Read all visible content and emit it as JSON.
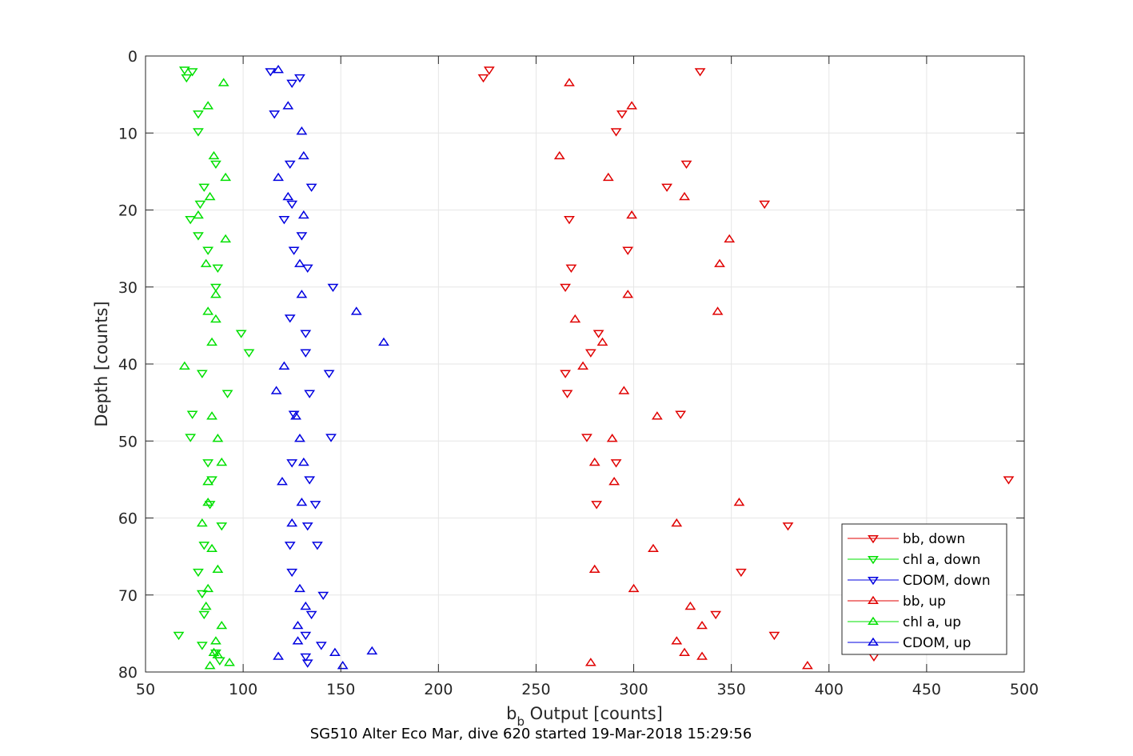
{
  "chart_data": {
    "type": "scatter",
    "title": "",
    "caption": "SG510 Alter Eco Mar, dive 620 started 19-Mar-2018 15:29:56",
    "xlabel_main": "b",
    "xlabel_sub": "b",
    "xlabel_rest": " Output [counts]",
    "ylabel": "Depth [counts]",
    "xlim": [
      50,
      500
    ],
    "ylim": [
      0,
      80
    ],
    "y_reversed": true,
    "grid": true,
    "legend_position": "bottom-right",
    "x_ticks": [
      "50",
      "100",
      "150",
      "200",
      "250",
      "300",
      "350",
      "400",
      "450",
      "500"
    ],
    "y_ticks": [
      "0",
      "10",
      "20",
      "30",
      "40",
      "50",
      "60",
      "70",
      "80"
    ],
    "series": [
      {
        "name": "bb, down",
        "color": "#e00000",
        "marker": "triangle-down",
        "points": [
          [
            226,
            1.8
          ],
          [
            223,
            2.8
          ],
          [
            334,
            2
          ],
          [
            294,
            7.5
          ],
          [
            291,
            9.8
          ],
          [
            327,
            14
          ],
          [
            317,
            17
          ],
          [
            367,
            19.2
          ],
          [
            267,
            21.2
          ],
          [
            297,
            25.2
          ],
          [
            268,
            27.5
          ],
          [
            265,
            30
          ],
          [
            282,
            36
          ],
          [
            278,
            38.5
          ],
          [
            265,
            41.2
          ],
          [
            266,
            43.8
          ],
          [
            324,
            46.5
          ],
          [
            276,
            49.5
          ],
          [
            291,
            52.8
          ],
          [
            492,
            55
          ],
          [
            281,
            58.2
          ],
          [
            379,
            61
          ],
          [
            355,
            67
          ],
          [
            342,
            72.5
          ],
          [
            372,
            75.2
          ],
          [
            423,
            78
          ]
        ]
      },
      {
        "name": "chl a, down",
        "color": "#00e000",
        "marker": "triangle-down",
        "points": [
          [
            70,
            1.8
          ],
          [
            74,
            2
          ],
          [
            71,
            2.8
          ],
          [
            77,
            7.5
          ],
          [
            77,
            9.8
          ],
          [
            86,
            14
          ],
          [
            80,
            17
          ],
          [
            78,
            19.2
          ],
          [
            73,
            21.2
          ],
          [
            77,
            23.3
          ],
          [
            82,
            25.2
          ],
          [
            87,
            27.5
          ],
          [
            86,
            30
          ],
          [
            99,
            36
          ],
          [
            103,
            38.5
          ],
          [
            79,
            41.2
          ],
          [
            92,
            43.8
          ],
          [
            74,
            46.5
          ],
          [
            73,
            49.5
          ],
          [
            82,
            52.8
          ],
          [
            84,
            55
          ],
          [
            83,
            58.2
          ],
          [
            89,
            61
          ],
          [
            80,
            63.5
          ],
          [
            77,
            67
          ],
          [
            79,
            69.8
          ],
          [
            80,
            72.5
          ],
          [
            67,
            75.2
          ],
          [
            79,
            76.5
          ],
          [
            86,
            77.5
          ],
          [
            88,
            78.5
          ]
        ]
      },
      {
        "name": "CDOM, down",
        "color": "#0000e0",
        "marker": "triangle-down",
        "points": [
          [
            114,
            2
          ],
          [
            129,
            2.8
          ],
          [
            125,
            3.5
          ],
          [
            116,
            7.5
          ],
          [
            124,
            14
          ],
          [
            135,
            17
          ],
          [
            125,
            19.2
          ],
          [
            121,
            21.2
          ],
          [
            130,
            23.3
          ],
          [
            126,
            25.2
          ],
          [
            133,
            27.5
          ],
          [
            146,
            30
          ],
          [
            124,
            34
          ],
          [
            132,
            36
          ],
          [
            132,
            38.5
          ],
          [
            144,
            41.2
          ],
          [
            134,
            43.8
          ],
          [
            126,
            46.5
          ],
          [
            145,
            49.5
          ],
          [
            125,
            52.8
          ],
          [
            134,
            55
          ],
          [
            137,
            58.2
          ],
          [
            133,
            61
          ],
          [
            124,
            63.5
          ],
          [
            138,
            63.5
          ],
          [
            125,
            67
          ],
          [
            141,
            70
          ],
          [
            135,
            72.5
          ],
          [
            132,
            75.2
          ],
          [
            140,
            76.5
          ],
          [
            132,
            78
          ],
          [
            133,
            78.8
          ]
        ]
      },
      {
        "name": "bb, up",
        "color": "#e00000",
        "marker": "triangle-up",
        "points": [
          [
            267,
            3.5
          ],
          [
            299,
            6.5
          ],
          [
            262,
            13
          ],
          [
            287,
            15.8
          ],
          [
            326,
            18.3
          ],
          [
            299,
            20.7
          ],
          [
            349,
            23.8
          ],
          [
            344,
            27
          ],
          [
            297,
            31
          ],
          [
            343,
            33.2
          ],
          [
            270,
            34.2
          ],
          [
            284,
            37.2
          ],
          [
            274,
            40.3
          ],
          [
            295,
            43.5
          ],
          [
            312,
            46.8
          ],
          [
            289,
            49.7
          ],
          [
            280,
            52.8
          ],
          [
            290,
            55.3
          ],
          [
            354,
            58
          ],
          [
            322,
            60.7
          ],
          [
            310,
            64
          ],
          [
            280,
            66.7
          ],
          [
            300,
            69.2
          ],
          [
            329,
            71.5
          ],
          [
            335,
            74
          ],
          [
            322,
            76
          ],
          [
            326,
            77.5
          ],
          [
            335,
            78
          ],
          [
            278,
            78.8
          ],
          [
            389,
            79.2
          ]
        ]
      },
      {
        "name": "chl a, up",
        "color": "#00e000",
        "marker": "triangle-up",
        "points": [
          [
            90,
            3.5
          ],
          [
            82,
            6.5
          ],
          [
            85,
            13
          ],
          [
            91,
            15.8
          ],
          [
            83,
            18.3
          ],
          [
            77,
            20.7
          ],
          [
            91,
            23.8
          ],
          [
            81,
            27
          ],
          [
            86,
            31
          ],
          [
            82,
            33.2
          ],
          [
            86,
            34.2
          ],
          [
            84,
            37.2
          ],
          [
            70,
            40.3
          ],
          [
            84,
            46.8
          ],
          [
            87,
            49.7
          ],
          [
            89,
            52.8
          ],
          [
            82,
            55.3
          ],
          [
            82,
            58
          ],
          [
            79,
            60.7
          ],
          [
            84,
            64
          ],
          [
            87,
            66.7
          ],
          [
            82,
            69.2
          ],
          [
            81,
            71.5
          ],
          [
            89,
            74
          ],
          [
            86,
            76
          ],
          [
            85,
            77.5
          ],
          [
            87,
            77.8
          ],
          [
            93,
            78.8
          ],
          [
            83,
            79.2
          ]
        ]
      },
      {
        "name": "CDOM, up",
        "color": "#0000e0",
        "marker": "triangle-up",
        "points": [
          [
            118,
            1.8
          ],
          [
            123,
            6.5
          ],
          [
            130,
            9.8
          ],
          [
            131,
            13
          ],
          [
            118,
            15.8
          ],
          [
            123,
            18.3
          ],
          [
            131,
            20.7
          ],
          [
            129,
            27
          ],
          [
            130,
            31
          ],
          [
            158,
            33.2
          ],
          [
            172,
            37.2
          ],
          [
            121,
            40.3
          ],
          [
            117,
            43.5
          ],
          [
            127,
            46.8
          ],
          [
            129,
            49.7
          ],
          [
            131,
            52.8
          ],
          [
            120,
            55.3
          ],
          [
            130,
            58
          ],
          [
            125,
            60.7
          ],
          [
            129,
            69.2
          ],
          [
            132,
            71.5
          ],
          [
            128,
            74
          ],
          [
            128,
            76
          ],
          [
            147,
            77.5
          ],
          [
            166,
            77.3
          ],
          [
            118,
            78
          ],
          [
            151,
            79.2
          ]
        ]
      }
    ]
  }
}
